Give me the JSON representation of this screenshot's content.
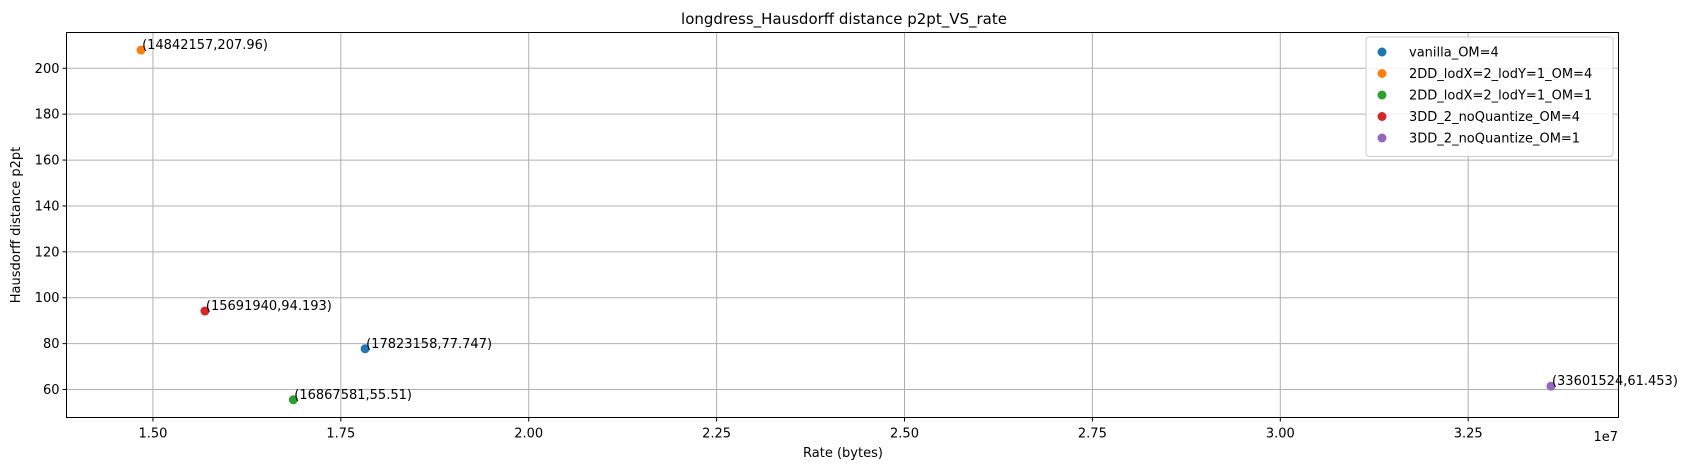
{
  "chart_data": {
    "type": "scatter",
    "title": "longdress_Hausdorff distance p2pt_VS_rate",
    "xlabel": "Rate (bytes)",
    "ylabel": "Hausdorff distance p2pt",
    "x_offset_label": "1e7",
    "xlim": [
      13850000,
      34500000
    ],
    "ylim": [
      47.8,
      215.6
    ],
    "grid": true,
    "legend_position": "top-right",
    "x_ticks": [
      {
        "value": 15000000,
        "label": "1.50"
      },
      {
        "value": 17500000,
        "label": "1.75"
      },
      {
        "value": 20000000,
        "label": "2.00"
      },
      {
        "value": 22500000,
        "label": "2.25"
      },
      {
        "value": 25000000,
        "label": "2.50"
      },
      {
        "value": 27500000,
        "label": "2.75"
      },
      {
        "value": 30000000,
        "label": "3.00"
      },
      {
        "value": 32500000,
        "label": "3.25"
      }
    ],
    "y_ticks": [
      {
        "value": 60,
        "label": "60"
      },
      {
        "value": 80,
        "label": "80"
      },
      {
        "value": 100,
        "label": "100"
      },
      {
        "value": 120,
        "label": "120"
      },
      {
        "value": 140,
        "label": "140"
      },
      {
        "value": 160,
        "label": "160"
      },
      {
        "value": 180,
        "label": "180"
      },
      {
        "value": 200,
        "label": "200"
      }
    ],
    "series": [
      {
        "name": "vanilla_OM=4",
        "color": "#1f77b4",
        "x": 17823158,
        "y": 77.747,
        "annotation": "(17823158,77.747)"
      },
      {
        "name": "2DD_lodX=2_lodY=1_OM=4",
        "color": "#ff7f0e",
        "x": 14842157,
        "y": 207.96,
        "annotation": "(14842157,207.96)"
      },
      {
        "name": "2DD_lodX=2_lodY=1_OM=1",
        "color": "#2ca02c",
        "x": 16867581,
        "y": 55.51,
        "annotation": "(16867581,55.51)"
      },
      {
        "name": "3DD_2_noQuantize_OM=4",
        "color": "#d62728",
        "x": 15691940,
        "y": 94.193,
        "annotation": "(15691940,94.193)"
      },
      {
        "name": "3DD_2_noQuantize_OM=1",
        "color": "#9467bd",
        "x": 33601524,
        "y": 61.453,
        "annotation": "(33601524,61.453)"
      }
    ]
  }
}
